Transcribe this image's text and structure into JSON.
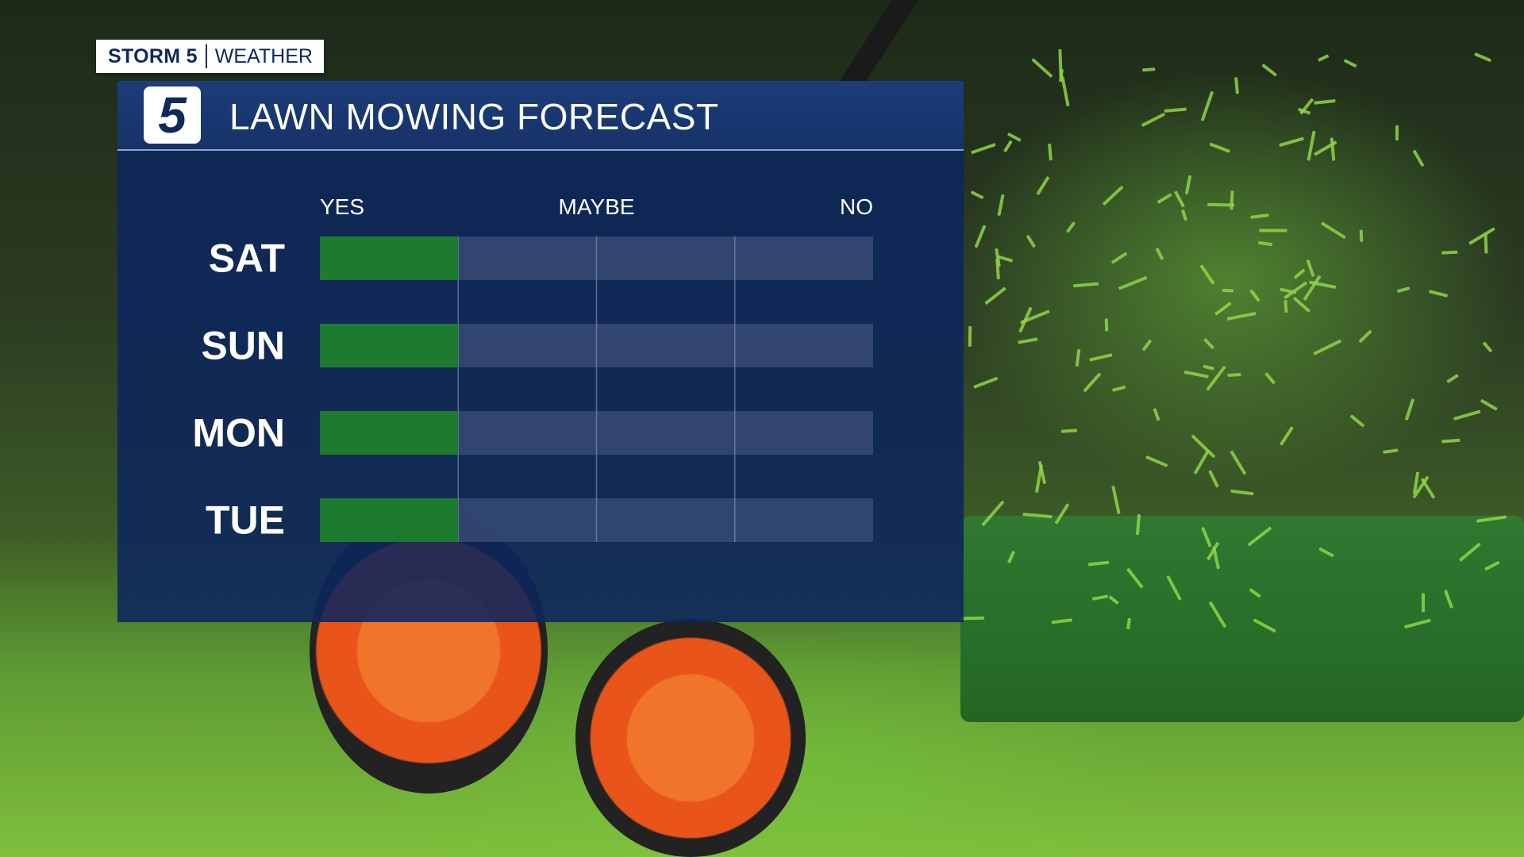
{
  "brand": {
    "name": "STORM 5",
    "sub": "WEATHER"
  },
  "panel": {
    "logo": "5",
    "title": "LAWN MOWING FORECAST"
  },
  "colors": {
    "panel": "#0d265c",
    "bar": "#1e7a2e",
    "track": "#3c4f78",
    "brand_text": "#0d2a5a"
  },
  "chart_data": {
    "type": "bar",
    "orientation": "horizontal",
    "title": "LAWN MOWING FORECAST",
    "scale_labels": [
      "YES",
      "MAYBE",
      "NO"
    ],
    "categories": [
      "SAT",
      "SUN",
      "MON",
      "TUE"
    ],
    "values": [
      0.25,
      0.25,
      0.25,
      0.25
    ],
    "value_meaning": "fraction of YES-to-NO scale filled",
    "grid": true
  }
}
